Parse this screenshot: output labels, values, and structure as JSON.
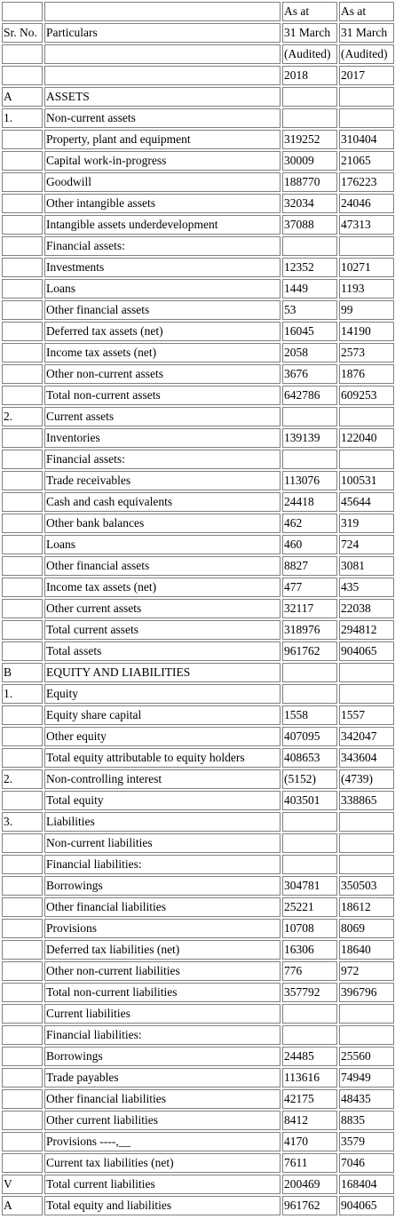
{
  "header": [
    [
      "",
      "",
      "As at",
      "As at"
    ],
    [
      "Sr. No.",
      "Particulars",
      "31 March",
      "31 March"
    ],
    [
      "",
      "",
      "(Audited)",
      "(Audited)"
    ],
    [
      "",
      "",
      "2018",
      "2017"
    ]
  ],
  "rows": [
    [
      "A",
      "ASSETS",
      "",
      ""
    ],
    [
      "1.",
      "Non-current assets",
      "",
      ""
    ],
    [
      "",
      "Property, plant and equipment",
      "319252",
      "310404"
    ],
    [
      "",
      "Capital work-in-progress",
      "30009",
      "21065"
    ],
    [
      "",
      "Goodwill",
      "188770",
      "176223"
    ],
    [
      "",
      "Other intangible assets",
      "32034",
      "24046"
    ],
    [
      "",
      "Intangible assets underdevelopment",
      "37088",
      "47313"
    ],
    [
      "",
      "Financial assets:",
      "",
      ""
    ],
    [
      "",
      "Investments",
      "12352",
      "10271"
    ],
    [
      "",
      "Loans",
      "1449",
      "1193"
    ],
    [
      "",
      "Other financial assets",
      "53",
      "99"
    ],
    [
      "",
      "Deferred tax assets (net)",
      "16045",
      "14190"
    ],
    [
      "",
      "Income tax assets (net)",
      "2058",
      "2573"
    ],
    [
      "",
      "Other non-current assets",
      "3676",
      "1876"
    ],
    [
      "",
      "Total non-current assets",
      "642786",
      "609253"
    ],
    [
      "2.",
      "Current assets",
      "",
      ""
    ],
    [
      "",
      "Inventories",
      "139139",
      "122040"
    ],
    [
      "",
      "Financial assets:",
      "",
      ""
    ],
    [
      "",
      "Trade receivables",
      "113076",
      "100531"
    ],
    [
      "",
      "Cash and cash equivalents",
      "24418",
      "45644"
    ],
    [
      "",
      "Other bank balances",
      "462",
      "319"
    ],
    [
      "",
      "Loans",
      "460",
      "724"
    ],
    [
      "",
      "Other financial assets",
      "8827",
      "3081"
    ],
    [
      "",
      "Income tax assets (net)",
      "477",
      "435"
    ],
    [
      "",
      "Other current assets",
      "32117",
      "22038"
    ],
    [
      "",
      "Total current assets",
      "318976",
      "294812"
    ],
    [
      "",
      "Total assets",
      "961762",
      "904065"
    ],
    [
      "B",
      "EQUITY AND LIABILITIES",
      "",
      ""
    ],
    [
      "1.",
      "Equity",
      "",
      ""
    ],
    [
      "",
      "Equity share capital",
      "1558",
      "1557"
    ],
    [
      "",
      "Other equity",
      "407095",
      "342047"
    ],
    [
      "",
      "Total equity attributable to equity holders",
      "408653",
      "343604"
    ],
    [
      "2.",
      "Non-controlling interest",
      "(5152)",
      "(4739)"
    ],
    [
      "",
      "Total equity",
      "403501",
      "338865"
    ],
    [
      "3.",
      "Liabilities",
      "",
      ""
    ],
    [
      "",
      "Non-current liabilities",
      "",
      ""
    ],
    [
      "",
      "Financial liabilities:",
      "",
      ""
    ],
    [
      "",
      "Borrowings",
      "304781",
      "350503"
    ],
    [
      "",
      "Other financial liabilities",
      "25221",
      "18612"
    ],
    [
      "",
      "Provisions",
      "10708",
      "8069"
    ],
    [
      "",
      "Deferred tax liabilities (net)",
      "16306",
      "18640"
    ],
    [
      "",
      "Other non-current liabilities",
      "776",
      "972"
    ],
    [
      "",
      "Total non-current liabilities",
      "357792",
      "396796"
    ],
    [
      "",
      "Current liabilities",
      "",
      ""
    ],
    [
      "",
      "Financial liabilities:",
      "",
      ""
    ],
    [
      "",
      "Borrowings",
      "24485",
      "25560"
    ],
    [
      "",
      "Trade payables",
      "113616",
      "74949"
    ],
    [
      "",
      "Other financial liabilities",
      "42175",
      "48435"
    ],
    [
      "",
      "Other current liabilities",
      "8412",
      "8835"
    ],
    [
      "",
      "Provisions ----,__",
      "4170",
      "3579"
    ],
    [
      "",
      "Current tax liabilities (net)",
      "7611",
      "7046"
    ],
    [
      "V",
      "Total current liabilities",
      "200469",
      "168404"
    ],
    [
      "A",
      "Total equity and liabilities",
      "961762",
      "904065"
    ]
  ]
}
